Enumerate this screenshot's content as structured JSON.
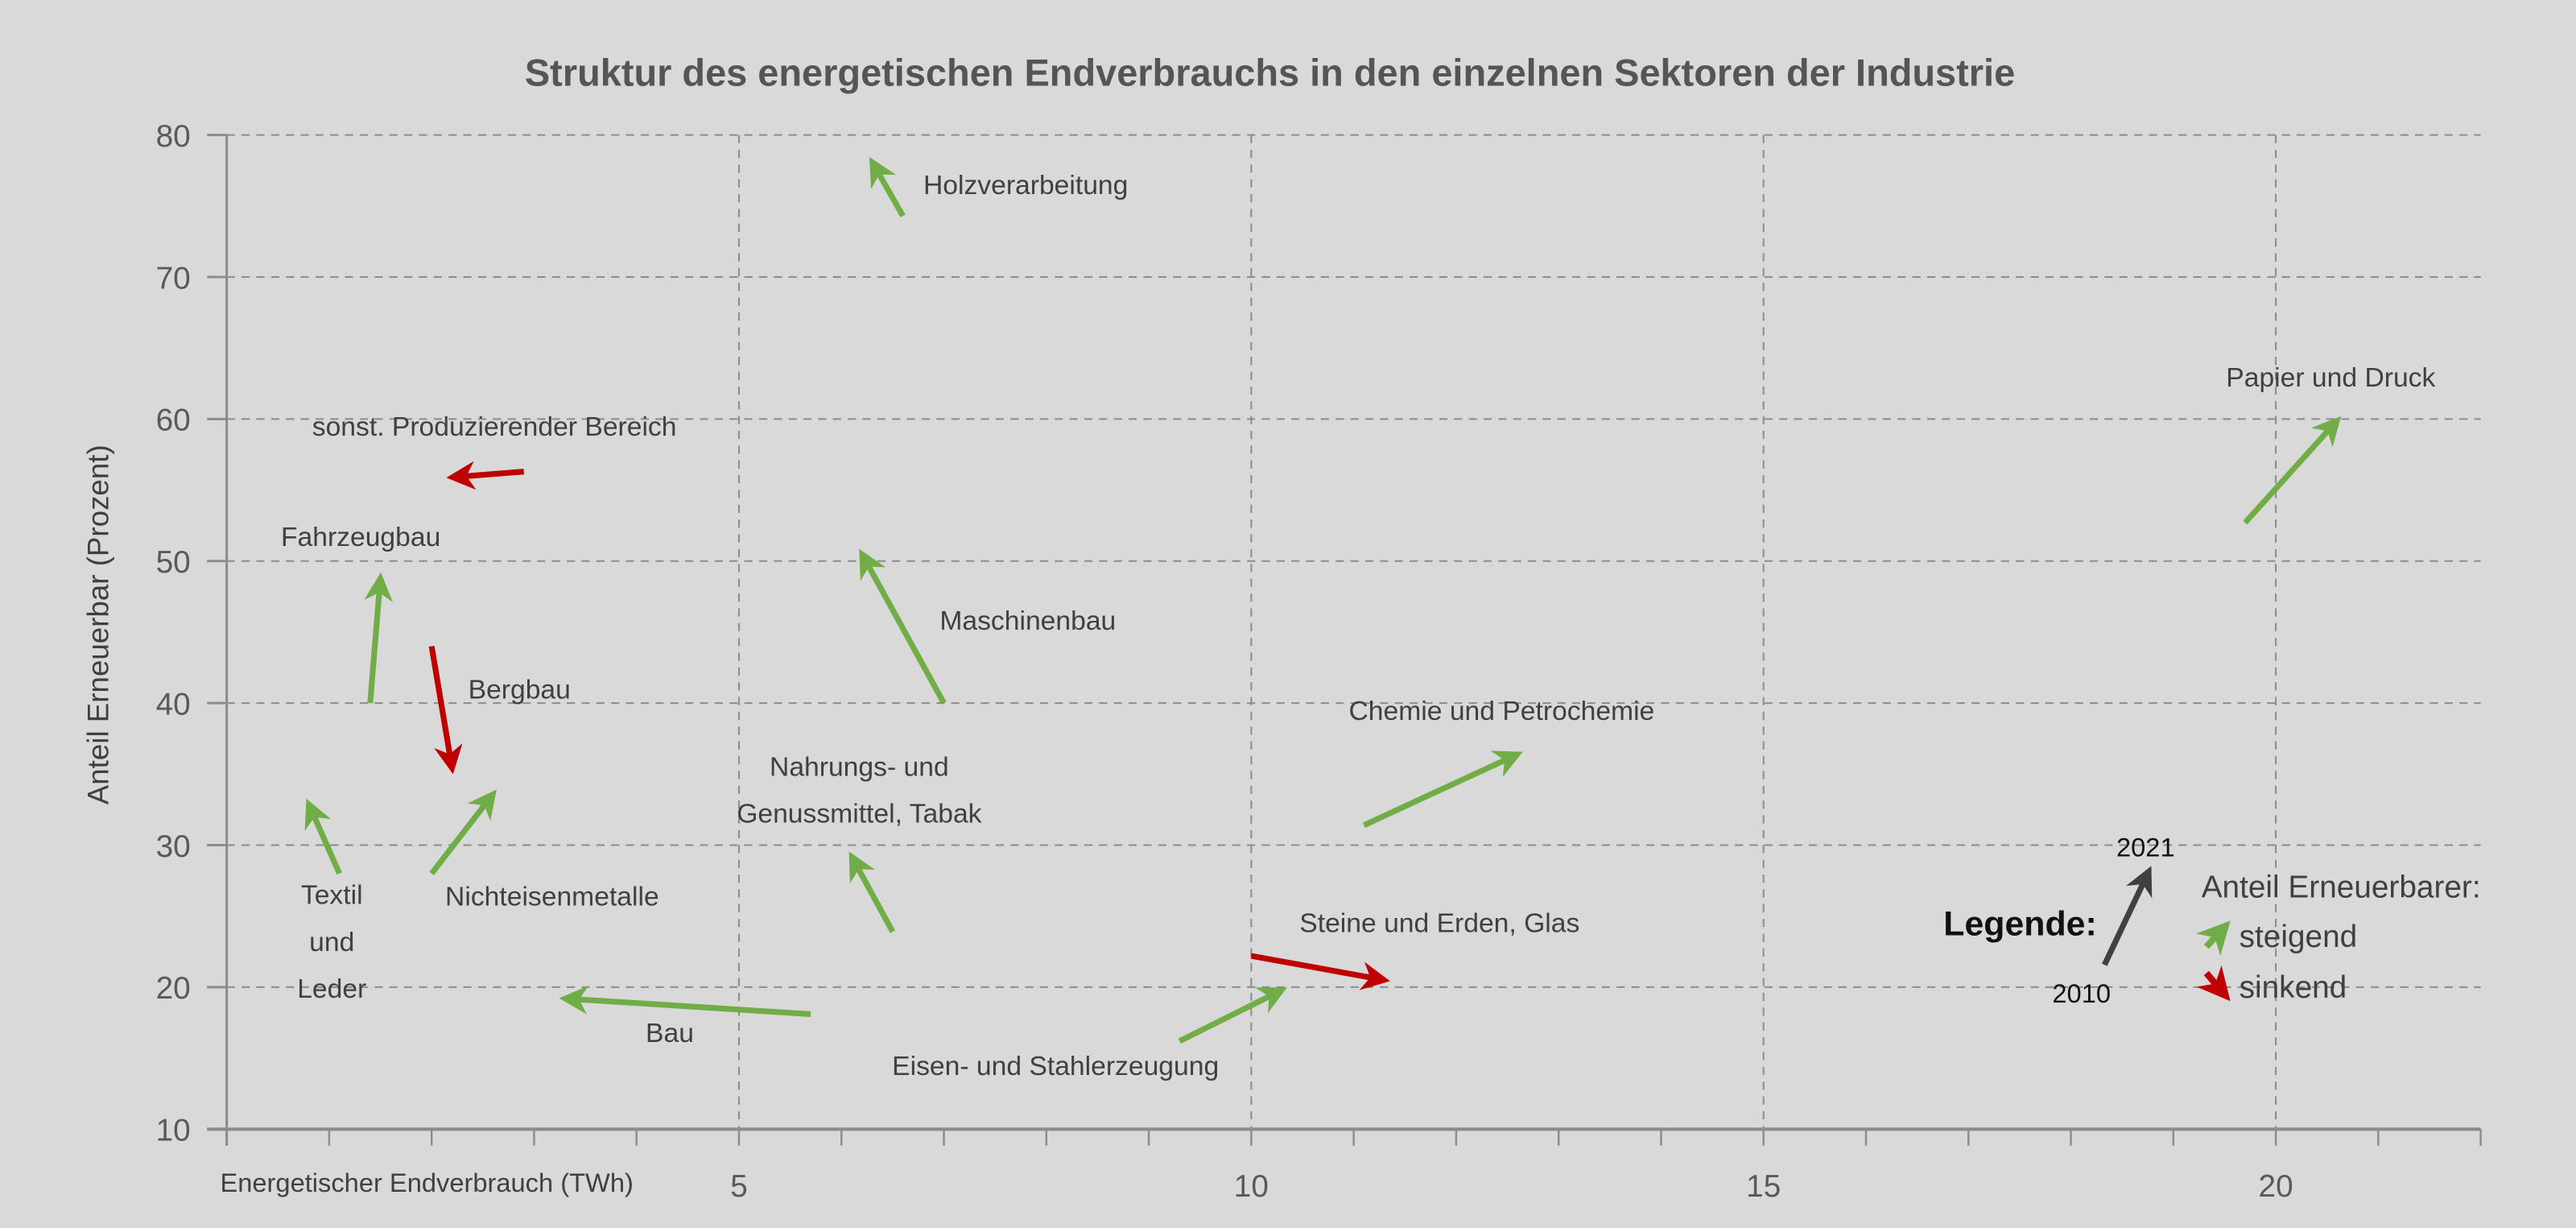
{
  "chart_data": {
    "type": "arrow-scatter",
    "title": "Struktur des energetischen Endverbrauchs in den einzelnen Sektoren der Industrie",
    "xlabel": "Energetischer Endverbrauch (TWh)",
    "ylabel": "Anteil Erneuerbar (Prozent)",
    "xlim": [
      0,
      22
    ],
    "ylim": [
      10,
      80
    ],
    "xticks": [
      5,
      10,
      15,
      20
    ],
    "yticks": [
      10,
      20,
      30,
      40,
      50,
      60,
      70,
      80
    ],
    "grid": true,
    "colors": {
      "steigend": "#70ad47",
      "sinkend": "#c00000",
      "legend_arrow": "#404040"
    },
    "series": [
      {
        "name": "Holzverarbeitung",
        "x2010": 6.6,
        "y2010": 74.3,
        "x2021": 6.3,
        "y2021": 78.1,
        "trend": "steigend"
      },
      {
        "name": "sonst. Produzierender Bereich",
        "x2010": 2.9,
        "y2010": 56.3,
        "x2021": 2.2,
        "y2021": 55.9,
        "trend": "sinkend"
      },
      {
        "name": "Fahrzeugbau",
        "x2010": 1.4,
        "y2010": 40.0,
        "x2021": 1.5,
        "y2021": 48.8,
        "trend": "steigend"
      },
      {
        "name": "Bergbau",
        "x2010": 2.0,
        "y2010": 44.0,
        "x2021": 2.2,
        "y2021": 35.4,
        "trend": "sinkend"
      },
      {
        "name": "Textil und Leder",
        "lines": [
          "Textil",
          "und",
          "Leder"
        ],
        "x2010": 1.1,
        "y2010": 28.0,
        "x2021": 0.8,
        "y2021": 32.9,
        "trend": "steigend"
      },
      {
        "name": "Nichteisenmetalle",
        "x2010": 2.0,
        "y2010": 28.0,
        "x2021": 2.6,
        "y2021": 33.6,
        "trend": "steigend"
      },
      {
        "name": "Maschinenbau",
        "x2010": 7.0,
        "y2010": 40.0,
        "x2021": 6.2,
        "y2021": 50.5,
        "trend": "steigend"
      },
      {
        "name": "Nahrungs- und Genussmittel, Tabak",
        "lines": [
          "Nahrungs- und",
          "Genussmittel, Tabak"
        ],
        "x2010": 6.5,
        "y2010": 23.9,
        "x2021": 6.1,
        "y2021": 29.2,
        "trend": "steigend"
      },
      {
        "name": "Bau",
        "x2010": 5.7,
        "y2010": 18.1,
        "x2021": 3.3,
        "y2021": 19.2,
        "trend": "steigend"
      },
      {
        "name": "Chemie und Petrochemie",
        "x2010": 11.1,
        "y2010": 31.4,
        "x2021": 12.6,
        "y2021": 36.4,
        "trend": "steigend"
      },
      {
        "name": "Steine und Erden, Glas",
        "x2010": 10.0,
        "y2010": 22.2,
        "x2021": 11.3,
        "y2021": 20.5,
        "trend": "sinkend"
      },
      {
        "name": "Eisen- und Stahlerzeugung",
        "x2010": 9.3,
        "y2010": 16.2,
        "x2021": 10.3,
        "y2021": 19.8,
        "trend": "steigend"
      },
      {
        "name": "Papier und Druck",
        "x2010": 19.7,
        "y2010": 52.7,
        "x2021": 20.6,
        "y2021": 59.9,
        "trend": "steigend"
      }
    ],
    "legend": {
      "title": "Legende:",
      "start_label": "2010",
      "end_label": "2021",
      "heading": "Anteil Erneuerbarer:",
      "rising": "steigend",
      "falling": "sinkend",
      "placement": "bottom-right"
    }
  }
}
